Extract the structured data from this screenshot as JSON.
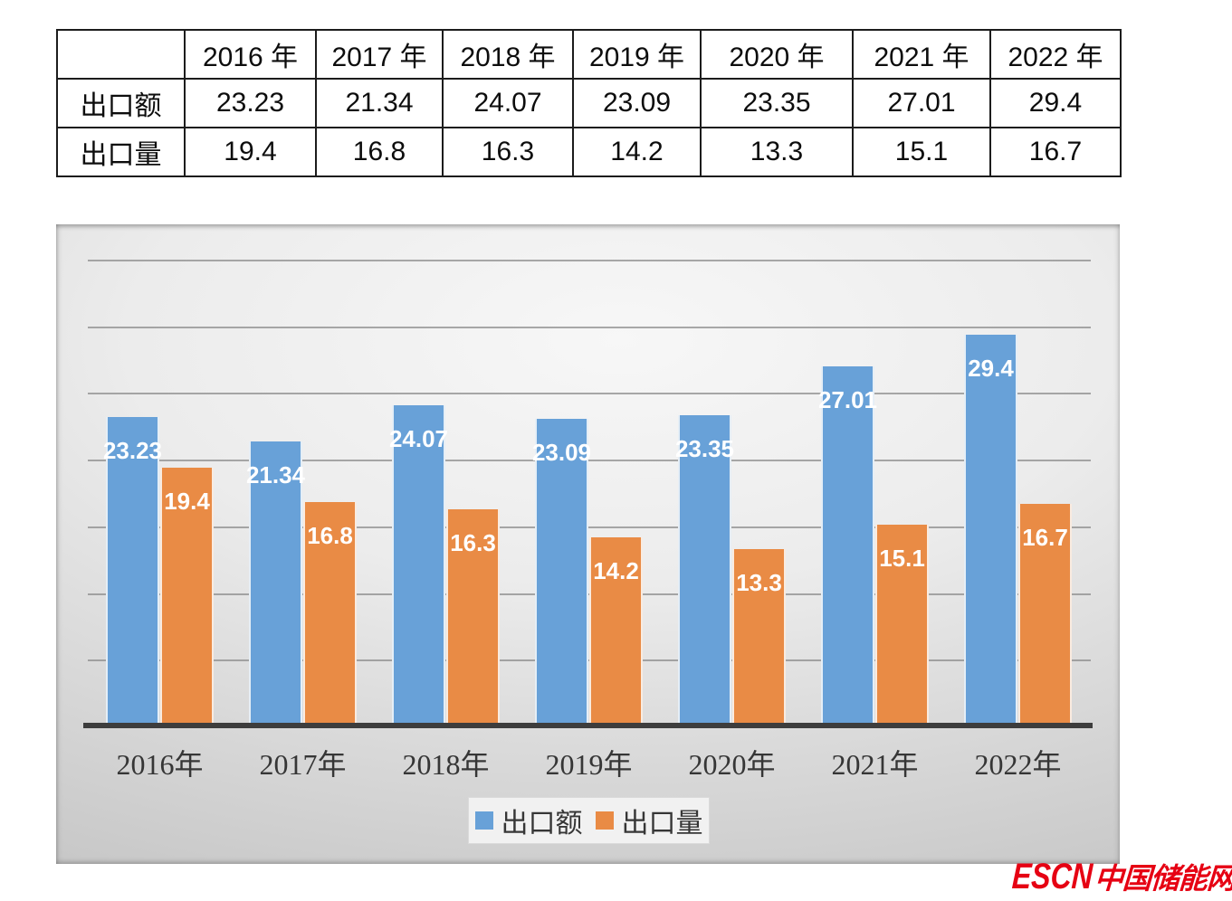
{
  "table": {
    "header": [
      "",
      "2016 年",
      "2017 年",
      "2018 年",
      "2019 年",
      "2020 年",
      "2021 年",
      "2022 年"
    ],
    "rows": [
      {
        "label": "出口额",
        "values": [
          "23.23",
          "21.34",
          "24.07",
          "23.09",
          "23.35",
          "27.01",
          "29.4"
        ]
      },
      {
        "label": "出口量",
        "values": [
          "19.4",
          "16.8",
          "16.3",
          "14.2",
          "13.3",
          "15.1",
          "16.7"
        ]
      }
    ]
  },
  "chart_data": {
    "type": "bar",
    "categories": [
      "2016年",
      "2017年",
      "2018年",
      "2019年",
      "2020年",
      "2021年",
      "2022年"
    ],
    "series": [
      {
        "name": "出口额",
        "color": "#68a1d8",
        "values": [
          23.23,
          21.34,
          24.07,
          23.09,
          23.35,
          27.01,
          29.4
        ],
        "labels": [
          "23.23",
          "21.34",
          "24.07",
          "23.09",
          "23.35",
          "27.01",
          "29.4"
        ]
      },
      {
        "name": "出口量",
        "color": "#e98b45",
        "values": [
          19.4,
          16.8,
          16.3,
          14.2,
          13.3,
          15.1,
          16.7
        ],
        "labels": [
          "19.4",
          "16.8",
          "16.3",
          "14.2",
          "13.3",
          "15.1",
          "16.7"
        ]
      }
    ],
    "title": "",
    "xlabel": "",
    "ylabel": "",
    "ylim": [
      0,
      35
    ],
    "gridline_step": 5,
    "grid": true,
    "y_tick_labels_shown": false,
    "legend_position": "bottom",
    "data_labels": "inside-end white bold",
    "background": "gray gradient",
    "gridline_color": "#8c8c8c",
    "axis_line_color": "#3d3d3d"
  },
  "watermark": {
    "en": "ESCN",
    "zh": "中国储能网",
    "color": "#e60113"
  }
}
